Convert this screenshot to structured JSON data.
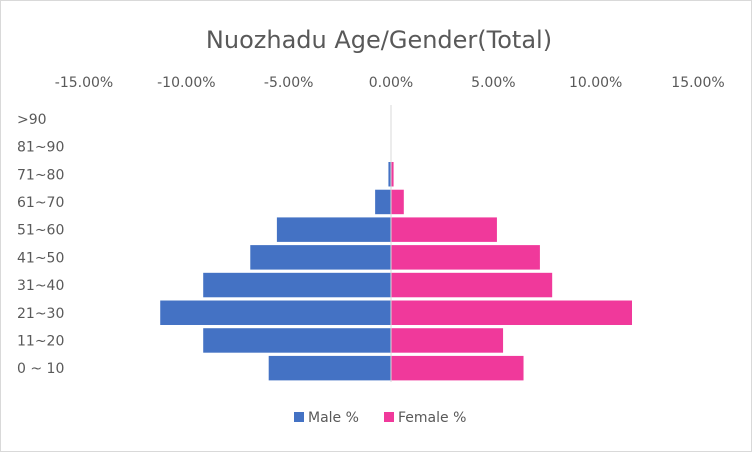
{
  "chart_data": {
    "type": "bar",
    "orientation": "horizontal",
    "title": "Nuozhadu Age/Gender(Total)",
    "xlabel": "",
    "ylabel": "",
    "xlim": [
      -15,
      15
    ],
    "x_ticks": [
      -15,
      -10,
      -5,
      0,
      5,
      10,
      15
    ],
    "x_tick_labels": [
      "-15.00%",
      "-10.00%",
      "-5.00%",
      "0.00%",
      "5.00%",
      "10.00%",
      "15.00%"
    ],
    "x_axis_position": "top",
    "grid": false,
    "legend": "bottom",
    "categories": [
      "0 ~ 10",
      "11~20",
      "21~30",
      "31~40",
      "41~50",
      "51~60",
      "61~70",
      "71~80",
      "81~90",
      ">90"
    ],
    "series": [
      {
        "name": "Male %",
        "color": "#4472c4",
        "values": [
          -6.0,
          -9.2,
          -11.3,
          -9.2,
          -6.9,
          -5.6,
          -0.8,
          -0.15,
          0,
          0
        ]
      },
      {
        "name": "Female %",
        "color": "#f0399b",
        "values": [
          6.5,
          5.5,
          11.8,
          7.9,
          7.3,
          5.2,
          0.65,
          0.15,
          0,
          0
        ]
      }
    ]
  }
}
